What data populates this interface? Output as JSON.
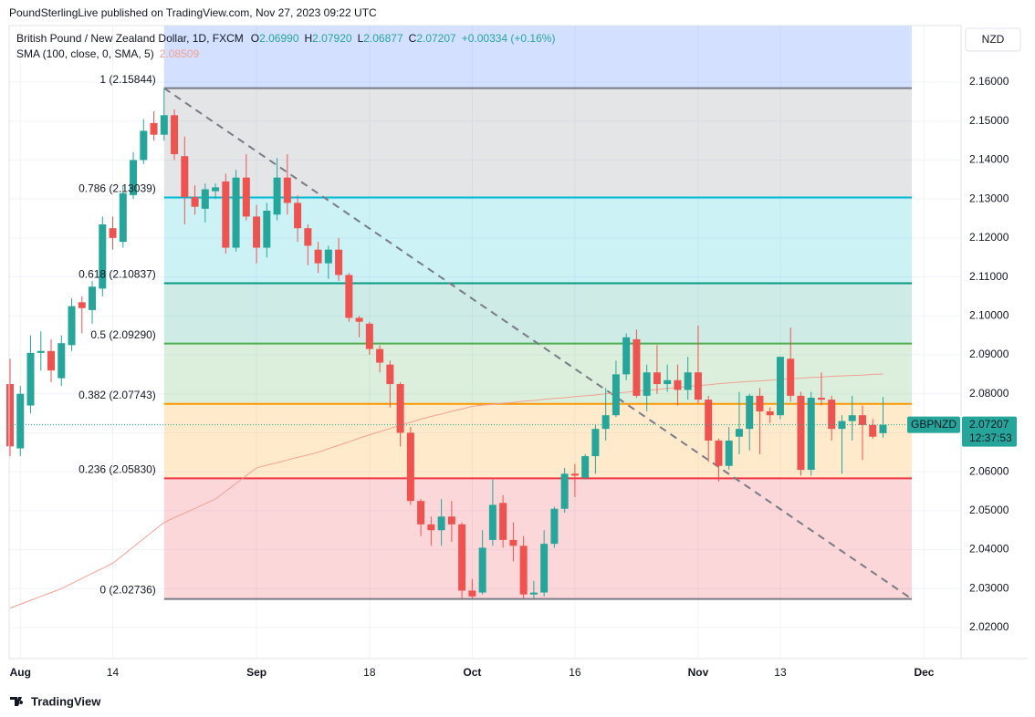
{
  "header": "PoundSterlingLive published on TradingView.com, Nov 27, 2023 09:22 UTC",
  "footer": "TradingView",
  "chart_data": {
    "type": "candlestick",
    "title": "British Pound / New Zealand Dollar, 1D, FXCM",
    "legend_values": [
      {
        "label": "O",
        "value": "2.06990"
      },
      {
        "label": "H",
        "value": "2.07920"
      },
      {
        "label": "L",
        "value": "2.06877"
      },
      {
        "label": "C",
        "value": "2.07207"
      }
    ],
    "change": "+0.00334 (+0.16%)",
    "currency": "NZD",
    "symbol_tag": "GBPNZD",
    "countdown": "12:37:53",
    "up_color": "#26a69a",
    "down_color": "#ef5350",
    "xlim": [
      -0.09,
      92.6
    ],
    "xticks": [
      {
        "value": 1,
        "label": "Aug"
      },
      {
        "value": 10,
        "label": "14"
      },
      {
        "value": 24,
        "label": "Sep"
      },
      {
        "value": 35,
        "label": "18"
      },
      {
        "value": 45,
        "label": "Oct"
      },
      {
        "value": 55,
        "label": "16"
      },
      {
        "value": 67,
        "label": "Nov"
      },
      {
        "value": 75,
        "label": "13"
      },
      {
        "value": 89,
        "label": "Dec"
      }
    ],
    "ylim": [
      2.01204,
      2.17452
    ],
    "yticks": [
      {
        "value": 2.02,
        "label": "2.02000"
      },
      {
        "value": 2.03,
        "label": "2.03000"
      },
      {
        "value": 2.04,
        "label": "2.04000"
      },
      {
        "value": 2.05,
        "label": "2.05000"
      },
      {
        "value": 2.06,
        "label": "2.06000"
      },
      {
        "value": 2.07,
        "label": "2.07000"
      },
      {
        "value": 2.08,
        "label": "2.08000"
      },
      {
        "value": 2.09,
        "label": "2.09000"
      },
      {
        "value": 2.1,
        "label": "2.10000"
      },
      {
        "value": 2.11,
        "label": "2.11000"
      },
      {
        "value": 2.12,
        "label": "2.12000"
      },
      {
        "value": 2.13,
        "label": "2.13000"
      },
      {
        "value": 2.14,
        "label": "2.14000"
      },
      {
        "value": 2.15,
        "label": "2.15000"
      },
      {
        "value": 2.16,
        "label": "2.16000"
      }
    ],
    "open": [
      2.0825,
      2.066,
      2.077,
      2.0905,
      2.091,
      2.084,
      2.0925,
      2.1035,
      2.1015,
      2.107,
      2.1225,
      2.119,
      2.131,
      2.14,
      2.1495,
      2.1465,
      2.1515,
      2.141,
      2.1305,
      2.1275,
      2.132,
      2.1345,
      2.1175,
      2.1355,
      2.1255,
      2.1175,
      2.126,
      2.1355,
      2.129,
      2.1225,
      2.117,
      2.1135,
      2.117,
      2.1105,
      2.0995,
      2.098,
      2.0915,
      2.0875,
      2.0825,
      2.07,
      2.0525,
      2.0465,
      2.045,
      2.0485,
      2.0465,
      2.0295,
      2.029,
      2.0425,
      2.052,
      2.0425,
      2.041,
      2.0285,
      2.029,
      2.0415,
      2.0505,
      2.0595,
      2.0585,
      2.064,
      2.071,
      2.0745,
      2.085,
      2.094,
      2.0795,
      2.0855,
      2.0825,
      2.0835,
      2.081,
      2.0855,
      2.0785,
      2.068,
      2.0615,
      2.069,
      2.071,
      2.0795,
      2.0755,
      2.0745,
      2.089,
      2.0795,
      2.0605,
      2.079,
      2.0785,
      2.071,
      2.073,
      2.0745,
      2.072,
      2.0699
    ],
    "high": [
      2.089,
      2.082,
      2.095,
      2.096,
      2.094,
      2.095,
      2.1045,
      2.105,
      2.109,
      2.1255,
      2.1255,
      2.1335,
      2.142,
      2.1505,
      2.1525,
      2.15844,
      2.153,
      2.146,
      2.1335,
      2.134,
      2.134,
      2.1365,
      2.1375,
      2.1415,
      2.1285,
      2.129,
      2.1405,
      2.1415,
      2.131,
      2.1235,
      2.119,
      2.118,
      2.12,
      2.111,
      2.1,
      2.0985,
      2.0925,
      2.0885,
      2.083,
      2.0715,
      2.053,
      2.0485,
      2.053,
      2.0525,
      2.047,
      2.0325,
      2.045,
      2.058,
      2.054,
      2.047,
      2.0435,
      2.032,
      2.045,
      2.051,
      2.061,
      2.062,
      2.0645,
      2.072,
      2.0815,
      2.0885,
      2.0955,
      2.0965,
      2.0875,
      2.0925,
      2.0875,
      2.0875,
      2.0895,
      2.0975,
      2.0795,
      2.0685,
      2.0715,
      2.0805,
      2.08,
      2.0815,
      2.0765,
      2.0895,
      2.097,
      2.0805,
      2.0805,
      2.0855,
      2.0795,
      2.0745,
      2.0795,
      2.077,
      2.0735,
      2.0792
    ],
    "low": [
      2.064,
      2.064,
      2.075,
      2.086,
      2.083,
      2.082,
      2.091,
      2.0955,
      2.098,
      2.105,
      2.117,
      2.1175,
      2.13,
      2.139,
      2.145,
      2.145,
      2.14,
      2.1235,
      2.126,
      2.124,
      2.13,
      2.116,
      2.1165,
      2.1245,
      2.1135,
      2.115,
      2.1245,
      2.126,
      2.119,
      2.113,
      2.111,
      2.1095,
      2.109,
      2.0985,
      2.0945,
      2.09,
      2.0855,
      2.0765,
      2.0665,
      2.0515,
      2.0435,
      2.041,
      2.041,
      2.042,
      2.02736,
      2.0275,
      2.0285,
      2.041,
      2.0405,
      2.037,
      2.0275,
      2.0275,
      2.028,
      2.0405,
      2.0495,
      2.0535,
      2.058,
      2.0595,
      2.068,
      2.074,
      2.0835,
      2.079,
      2.0755,
      2.08,
      2.0805,
      2.077,
      2.0785,
      2.0775,
      2.0625,
      2.0575,
      2.0605,
      2.0645,
      2.0655,
      2.0645,
      2.0725,
      2.0735,
      2.078,
      2.059,
      2.059,
      2.077,
      2.068,
      2.0595,
      2.068,
      2.063,
      2.0685,
      2.06877
    ],
    "close": [
      2.0665,
      2.08,
      2.0905,
      2.091,
      2.086,
      2.093,
      2.1025,
      2.102,
      2.1075,
      2.1235,
      2.12,
      2.1315,
      2.14,
      2.1475,
      2.1465,
      2.1515,
      2.1415,
      2.1305,
      2.128,
      2.1325,
      2.133,
      2.1175,
      2.1355,
      2.1255,
      2.1175,
      2.127,
      2.1355,
      2.129,
      2.1225,
      2.118,
      2.1135,
      2.117,
      2.1105,
      2.0995,
      2.0985,
      2.0915,
      2.088,
      2.0825,
      2.07,
      2.0525,
      2.0465,
      2.045,
      2.0485,
      2.0465,
      2.0295,
      2.028,
      2.0405,
      2.0515,
      2.0425,
      2.041,
      2.0285,
      2.029,
      2.0415,
      2.0505,
      2.0595,
      2.059,
      2.064,
      2.071,
      2.0745,
      2.085,
      2.0945,
      2.0795,
      2.0855,
      2.0825,
      2.0835,
      2.081,
      2.0855,
      2.0785,
      2.068,
      2.0615,
      2.068,
      2.071,
      2.0795,
      2.0755,
      2.0745,
      2.0895,
      2.0795,
      2.0605,
      2.079,
      2.0785,
      2.071,
      2.073,
      2.0745,
      2.072,
      2.069,
      2.07207
    ],
    "sma": {
      "name": "SMA (100, close, 0, SMA, 5)",
      "color": "#f4a093",
      "values": [
        2.025,
        2.026,
        2.027,
        2.028,
        2.029,
        2.03,
        2.0313,
        2.0326,
        2.0339,
        2.0352,
        2.0365,
        2.0386,
        2.0407,
        2.0428,
        2.0449,
        2.047,
        2.0482,
        2.0494,
        2.0506,
        2.0518,
        2.053,
        2.055,
        2.057,
        2.059,
        2.061,
        2.0617,
        2.0623,
        2.063,
        2.0637,
        2.0643,
        2.065,
        2.0659,
        2.0668,
        2.0677,
        2.0686,
        2.0695,
        2.0703,
        2.0711,
        2.0719,
        2.0727,
        2.0735,
        2.0742,
        2.0748,
        2.0755,
        2.0761,
        2.0768,
        2.0771,
        2.0773,
        2.0776,
        2.0778,
        2.0781,
        2.0783,
        2.0786,
        2.0788,
        2.079,
        2.0793,
        2.0795,
        2.0797,
        2.08,
        2.0802,
        2.0804,
        2.0807,
        2.0809,
        2.0811,
        2.0814,
        2.0816,
        2.0819,
        2.0821,
        2.0823,
        2.0826,
        2.0828,
        2.083,
        2.0832,
        2.0833,
        2.0835,
        2.0837,
        2.0839,
        2.084,
        2.0842,
        2.0843,
        2.0845,
        2.0846,
        2.0847,
        2.0848,
        2.085,
        2.08509
      ]
    },
    "fib_levels": [
      {
        "label": "1 (2.15844)",
        "value": 2.15844,
        "color": "#787b86"
      },
      {
        "label": "0.786 (2.13039)",
        "value": 2.13039,
        "color": "#00bcd4"
      },
      {
        "label": "0.618 (2.10837)",
        "value": 2.10837,
        "color": "#089981"
      },
      {
        "label": "0.5 (2.09290)",
        "value": 2.0929,
        "color": "#4caf50"
      },
      {
        "label": "0.382 (2.07743)",
        "value": 2.07743,
        "color": "#ff9800"
      },
      {
        "label": "0.236 (2.05830)",
        "value": 2.0583,
        "color": "#f23645"
      },
      {
        "label": "0 (2.02736)",
        "value": 2.02736,
        "color": "#787b86"
      }
    ]
  }
}
